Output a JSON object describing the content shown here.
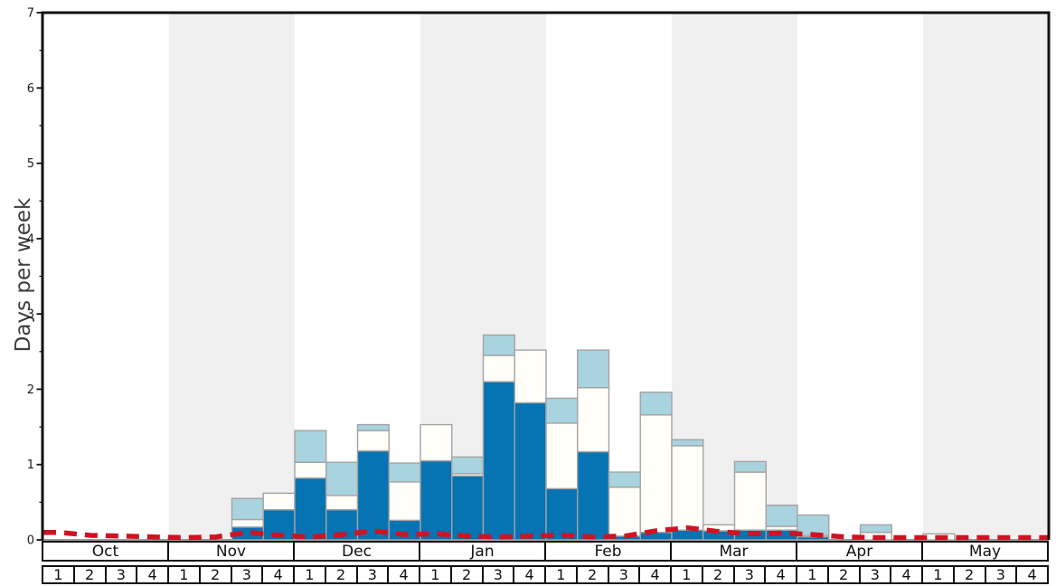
{
  "chart_data": {
    "type": "bar",
    "stacked": true,
    "ylabel": "Days per week",
    "ylim": [
      0,
      7
    ],
    "y_tick_labels": [
      "0",
      "1",
      "2",
      "3",
      "4",
      "5",
      "6",
      "7"
    ],
    "y_minor_step": 0.5,
    "grid": "off",
    "legend": "none",
    "x_structure": {
      "months": [
        "Oct",
        "Nov",
        "Dec",
        "Jan",
        "Feb",
        "Mar",
        "Apr",
        "May"
      ],
      "week_labels": [
        "1",
        "2",
        "3",
        "4"
      ],
      "shaded_months": [
        "Nov",
        "Jan",
        "Mar",
        "May"
      ]
    },
    "series": [
      {
        "name": "dark-blue-segment",
        "color": "#0673b2",
        "values": [
          0,
          0,
          0,
          0,
          0,
          0,
          0.17,
          0.4,
          0.82,
          0.4,
          1.18,
          0.26,
          1.05,
          0.85,
          2.1,
          1.82,
          0.68,
          1.17,
          0.05,
          0.1,
          0.13,
          0.12,
          0.13,
          0.13,
          0.04,
          0,
          0,
          0,
          0,
          0,
          0,
          0
        ]
      },
      {
        "name": "white-segment",
        "color": "#fffef9",
        "values": [
          0,
          0,
          0,
          0,
          0,
          0,
          0.1,
          0.22,
          0.21,
          0.19,
          0.27,
          0.51,
          0.48,
          0.03,
          0.35,
          0.7,
          0.87,
          0.85,
          0.65,
          1.56,
          1.12,
          0.08,
          0.77,
          0.05,
          0.02,
          0,
          0.1,
          0,
          0.08,
          0,
          0,
          0
        ]
      },
      {
        "name": "light-blue-segment",
        "color": "#aad3e0",
        "values": [
          0,
          0,
          0,
          0,
          0,
          0,
          0.28,
          0,
          0.42,
          0.44,
          0.08,
          0.25,
          0,
          0.22,
          0.27,
          0,
          0.33,
          0.5,
          0.2,
          0.3,
          0.08,
          0,
          0.14,
          0.28,
          0.27,
          0,
          0.1,
          0,
          0,
          0,
          0,
          0
        ]
      }
    ],
    "line": {
      "name": "red-dashed-line",
      "color": "#d01222",
      "style": "dashed",
      "values": [
        0.1,
        0.06,
        0.05,
        0.04,
        0.03,
        0.04,
        0.1,
        0.06,
        0.04,
        0.07,
        0.12,
        0.07,
        0.08,
        0.05,
        0.04,
        0.05,
        0.06,
        0.04,
        0.05,
        0.12,
        0.16,
        0.11,
        0.08,
        0.09,
        0.07,
        0.04,
        0.03,
        0.03,
        0.03,
        0.03,
        0.03,
        0.03
      ]
    },
    "colors": {
      "band_gray": "#f0f0f0",
      "bar_border": "#a3a3a3",
      "spine": "#111111",
      "baseline": "#7a7a7a",
      "tick_text": "#1a1a1a"
    }
  }
}
